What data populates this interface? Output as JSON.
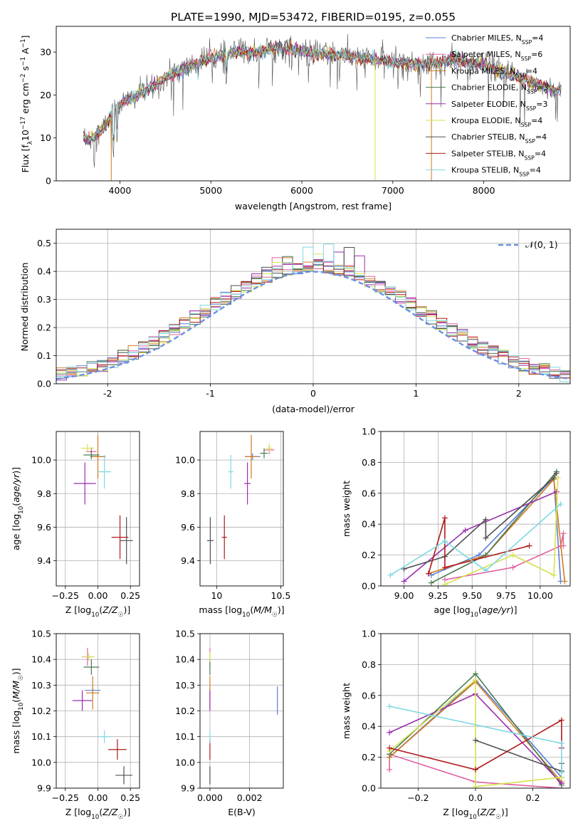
{
  "figure": {
    "title": "PLATE=1990, MJD=53472, FIBERID=0195, z=0.055"
  },
  "colors": {
    "chabrier_miles": "#5b7fd6",
    "salpeter_miles": "#e060a0",
    "kroupa_miles": "#d07a20",
    "chabrier_elodie": "#4a7a50",
    "salpeter_elodie": "#9b2db0",
    "kroupa_elodie": "#d6e24a",
    "chabrier_stelib": "#505050",
    "salpeter_stelib": "#b01818",
    "kroupa_stelib": "#7fd8e0",
    "normal_curve": "#6a8fe0",
    "grid": "#b0b0b0"
  },
  "legend": {
    "spectrum": [
      {
        "name": "Chabrier MILES",
        "nssp": "4"
      },
      {
        "name": "Salpeter MILES",
        "nssp": "6"
      },
      {
        "name": "Kroupa MILES",
        "nssp": "4"
      },
      {
        "name": "Chabrier ELODIE",
        "nssp": "3"
      },
      {
        "name": "Salpeter ELODIE",
        "nssp": "3"
      },
      {
        "name": "Kroupa ELODIE",
        "nssp": "4"
      },
      {
        "name": "Chabrier STELIB",
        "nssp": "4"
      },
      {
        "name": "Salpeter STELIB",
        "nssp": "4"
      },
      {
        "name": "Kroupa STELIB",
        "nssp": "4"
      }
    ],
    "residual_label": "𝒩(0, 1)"
  },
  "chart_data": [
    {
      "id": "spectrum",
      "type": "line",
      "xlabel": "wavelength [Angstrom, rest frame]",
      "ylabel": "Flux [f_λ10^-17 erg cm^-2 s^-1 A^-1]",
      "xlim": [
        3300,
        8950
      ],
      "ylim": [
        0,
        36
      ],
      "xticks": [
        4000,
        5000,
        6000,
        7000,
        8000
      ],
      "yticks": [
        0,
        10,
        20,
        30
      ],
      "grid": false,
      "legend_position": "top-right",
      "continuum": [
        [
          3600,
          10
        ],
        [
          3700,
          10
        ],
        [
          3850,
          13
        ],
        [
          3950,
          17
        ],
        [
          4100,
          19
        ],
        [
          4300,
          21
        ],
        [
          4500,
          24
        ],
        [
          4700,
          26
        ],
        [
          4900,
          28
        ],
        [
          5100,
          29
        ],
        [
          5300,
          30
        ],
        [
          5500,
          30
        ],
        [
          5700,
          31
        ],
        [
          5900,
          30.5
        ],
        [
          6100,
          30
        ],
        [
          6300,
          29.5
        ],
        [
          6500,
          29
        ],
        [
          6700,
          28.5
        ],
        [
          6900,
          28
        ],
        [
          7100,
          27.5
        ],
        [
          7300,
          27
        ],
        [
          7500,
          27.5
        ],
        [
          7700,
          28
        ],
        [
          8000,
          27
        ],
        [
          8400,
          24
        ],
        [
          8800,
          21
        ]
      ]
    },
    {
      "id": "residuals",
      "type": "histogram",
      "xlabel": "(data-model)/error",
      "ylabel": "Normed distribution",
      "xlim": [
        -2.5,
        2.5
      ],
      "ylim": [
        0,
        0.55
      ],
      "xticks": [
        -2,
        -1,
        0,
        1,
        2
      ],
      "yticks": [
        0.0,
        0.1,
        0.2,
        0.3,
        0.4,
        0.5
      ],
      "grid": true,
      "legend_position": "top-right",
      "bin_width": 0.1
    },
    {
      "id": "age_vs_z",
      "type": "scatter",
      "xlabel": "Z [log10(Z/Z☉)]",
      "ylabel": "age  [log10(age/yr)]",
      "xlim": [
        -0.32,
        0.32
      ],
      "ylim": [
        9.25,
        10.17
      ],
      "xticks": [
        -0.25,
        0.0,
        0.25
      ],
      "xtick_labels": [
        "−0.25",
        "0.00",
        "0.25"
      ],
      "yticks": [
        9.4,
        9.6,
        9.8,
        10.0
      ],
      "grid": true,
      "points": [
        {
          "series": "chabrier_miles",
          "x": 0.0,
          "y": 10.02,
          "dx": 0.12,
          "dy": 0.04
        },
        {
          "series": "salpeter_miles",
          "x": -0.05,
          "y": 10.05,
          "dx": 0.08,
          "dy": 0.05
        },
        {
          "series": "kroupa_miles",
          "x": 0.0,
          "y": 10.02,
          "dx": 0.1,
          "dy": 0.26
        },
        {
          "series": "chabrier_elodie",
          "x": -0.05,
          "y": 10.03,
          "dx": 0.12,
          "dy": 0.05
        },
        {
          "series": "salpeter_elodie",
          "x": -0.1,
          "y": 9.86,
          "dx": 0.17,
          "dy": 0.25
        },
        {
          "series": "kroupa_elodie",
          "x": -0.08,
          "y": 10.07,
          "dx": 0.1,
          "dy": 0.05
        },
        {
          "series": "chabrier_stelib",
          "x": 0.22,
          "y": 9.52,
          "dx": 0.1,
          "dy": 0.28
        },
        {
          "series": "salpeter_stelib",
          "x": 0.17,
          "y": 9.54,
          "dx": 0.13,
          "dy": 0.26
        },
        {
          "series": "kroupa_stelib",
          "x": 0.05,
          "y": 9.93,
          "dx": 0.1,
          "dy": 0.2
        }
      ]
    },
    {
      "id": "age_vs_mass",
      "type": "scatter",
      "xlabel": "mass [log10(M/M☉)]",
      "ylabel": "",
      "xlim": [
        9.87,
        10.52
      ],
      "ylim": [
        9.25,
        10.17
      ],
      "xticks": [
        10.0,
        10.5
      ],
      "xtick_labels": [
        "10",
        "10.5"
      ],
      "yticks": [
        9.4,
        9.6,
        9.8,
        10.0
      ],
      "grid": true,
      "points": [
        {
          "series": "chabrier_miles",
          "x": 10.28,
          "y": 10.02,
          "dx": 0.12,
          "dy": 0.04
        },
        {
          "series": "salpeter_miles",
          "x": 10.41,
          "y": 10.06,
          "dx": 0.08,
          "dy": 0.05
        },
        {
          "series": "kroupa_miles",
          "x": 10.27,
          "y": 10.02,
          "dx": 0.1,
          "dy": 0.26
        },
        {
          "series": "chabrier_elodie",
          "x": 10.37,
          "y": 10.04,
          "dx": 0.06,
          "dy": 0.06
        },
        {
          "series": "salpeter_elodie",
          "x": 10.24,
          "y": 9.86,
          "dx": 0.05,
          "dy": 0.25
        },
        {
          "series": "kroupa_elodie",
          "x": 10.41,
          "y": 10.07,
          "dx": 0.05,
          "dy": 0.05
        },
        {
          "series": "chabrier_stelib",
          "x": 9.95,
          "y": 9.52,
          "dx": 0.05,
          "dy": 0.28
        },
        {
          "series": "salpeter_stelib",
          "x": 10.06,
          "y": 9.54,
          "dx": 0.04,
          "dy": 0.26
        },
        {
          "series": "kroupa_stelib",
          "x": 10.11,
          "y": 9.93,
          "dx": 0.04,
          "dy": 0.2
        }
      ]
    },
    {
      "id": "weight_vs_age",
      "type": "line",
      "xlabel": "age  [log10(age/yr)]",
      "ylabel": "mass weight",
      "xlim": [
        8.83,
        10.22
      ],
      "ylim": [
        0,
        1.0
      ],
      "xticks": [
        9.0,
        9.25,
        9.5,
        9.75,
        10.0
      ],
      "xtick_labels": [
        "9.00",
        "9.25",
        "9.50",
        "9.75",
        "10.00"
      ],
      "yticks": [
        0.0,
        0.2,
        0.4,
        0.6,
        0.8,
        1.0
      ],
      "grid": true,
      "series": [
        {
          "key": "chabrier_miles",
          "x": [
            9.2,
            9.55,
            10.1,
            10.15
          ],
          "y": [
            0.07,
            0.2,
            0.7,
            0.03
          ]
        },
        {
          "key": "salpeter_miles",
          "x": [
            9.3,
            9.8,
            10.15,
            10.17,
            10.17
          ],
          "y": [
            0.04,
            0.12,
            0.26,
            0.34,
            0.26
          ]
        },
        {
          "key": "kroupa_miles",
          "x": [
            9.18,
            9.6,
            10.1,
            10.18
          ],
          "y": [
            0.08,
            0.2,
            0.69,
            0.03
          ]
        },
        {
          "key": "chabrier_elodie",
          "x": [
            9.2,
            9.6,
            10.12
          ],
          "y": [
            0.02,
            0.2,
            0.74
          ]
        },
        {
          "key": "salpeter_elodie",
          "x": [
            9.0,
            9.45,
            10.12
          ],
          "y": [
            0.03,
            0.36,
            0.61
          ]
        },
        {
          "key": "kroupa_elodie",
          "x": [
            9.3,
            9.8,
            10.1,
            10.13
          ],
          "y": [
            0.01,
            0.2,
            0.07,
            0.7
          ]
        },
        {
          "key": "chabrier_stelib",
          "x": [
            9.0,
            9.3,
            9.6,
            9.6,
            10.1,
            10.12
          ],
          "y": [
            0.11,
            0.19,
            0.43,
            0.31,
            0.7,
            0.73
          ]
        },
        {
          "key": "salpeter_stelib",
          "x": [
            9.18,
            9.3,
            9.3,
            9.92
          ],
          "y": [
            0.08,
            0.44,
            0.12,
            0.26
          ]
        },
        {
          "key": "kroupa_stelib",
          "x": [
            8.9,
            9.3,
            9.6,
            10.15
          ],
          "y": [
            0.07,
            0.29,
            0.1,
            0.53
          ]
        }
      ]
    },
    {
      "id": "mass_vs_z",
      "type": "scatter",
      "xlabel": "Z [log10(Z/Z☉)]",
      "ylabel": "mass [log10(M/M☉)]",
      "xlim": [
        -0.32,
        0.32
      ],
      "ylim": [
        9.9,
        10.5
      ],
      "xticks": [
        -0.25,
        0.0,
        0.25
      ],
      "xtick_labels": [
        "−0.25",
        "0.00",
        "0.25"
      ],
      "yticks": [
        9.9,
        10.0,
        10.1,
        10.2,
        10.3,
        10.4,
        10.5
      ],
      "grid": true,
      "points": [
        {
          "series": "chabrier_miles",
          "x": -0.04,
          "y": 10.28,
          "dx": 0.12,
          "dy": 0.02
        },
        {
          "series": "salpeter_miles",
          "x": -0.08,
          "y": 10.41,
          "dx": 0.08,
          "dy": 0.07
        },
        {
          "series": "kroupa_miles",
          "x": -0.04,
          "y": 10.27,
          "dx": 0.1,
          "dy": 0.13
        },
        {
          "series": "chabrier_elodie",
          "x": -0.05,
          "y": 10.37,
          "dx": 0.12,
          "dy": 0.06
        },
        {
          "series": "salpeter_elodie",
          "x": -0.12,
          "y": 10.24,
          "dx": 0.15,
          "dy": 0.08
        },
        {
          "series": "kroupa_elodie",
          "x": -0.07,
          "y": 10.41,
          "dx": 0.09,
          "dy": 0.03
        },
        {
          "series": "chabrier_stelib",
          "x": 0.2,
          "y": 9.95,
          "dx": 0.13,
          "dy": 0.07
        },
        {
          "series": "salpeter_stelib",
          "x": 0.15,
          "y": 10.05,
          "dx": 0.14,
          "dy": 0.08
        },
        {
          "series": "kroupa_stelib",
          "x": 0.05,
          "y": 10.1,
          "dx": 0.1,
          "dy": 0.05
        }
      ]
    },
    {
      "id": "mass_vs_ebv",
      "type": "scatter",
      "xlabel": "E(B-V)",
      "ylabel": "",
      "xlim": [
        -0.0005,
        0.0037
      ],
      "ylim": [
        9.9,
        10.5
      ],
      "xticks": [
        0.0,
        0.002
      ],
      "xtick_labels": [
        "0.000",
        "0.002"
      ],
      "yticks": [
        9.9,
        10.0,
        10.1,
        10.2,
        10.3,
        10.4,
        10.5
      ],
      "grid": true,
      "points": [
        {
          "series": "chabrier_miles",
          "x": 0.0034,
          "y": 10.24,
          "dx": 0,
          "dy": 0.11
        },
        {
          "series": "salpeter_miles",
          "x": 0.0,
          "y": 10.41,
          "dx": 0,
          "dy": 0.07
        },
        {
          "series": "kroupa_miles",
          "x": 0.0,
          "y": 10.27,
          "dx": 0,
          "dy": 0.13
        },
        {
          "series": "chabrier_elodie",
          "x": 0.0,
          "y": 10.37,
          "dx": 0,
          "dy": 0.06
        },
        {
          "series": "salpeter_elodie",
          "x": 0.0,
          "y": 10.24,
          "dx": 0,
          "dy": 0.08
        },
        {
          "series": "kroupa_elodie",
          "x": 0.0,
          "y": 10.41,
          "dx": 0,
          "dy": 0.04
        },
        {
          "series": "chabrier_stelib",
          "x": 0.0,
          "y": 9.95,
          "dx": 0,
          "dy": 0.07
        },
        {
          "series": "salpeter_stelib",
          "x": 0.0,
          "y": 10.05,
          "dx": 0,
          "dy": 0.08
        },
        {
          "series": "kroupa_stelib",
          "x": 0.0,
          "y": 10.1,
          "dx": 0,
          "dy": 0.05
        }
      ]
    },
    {
      "id": "weight_vs_z",
      "type": "line",
      "xlabel": "Z [log10(Z/Z☉)]",
      "ylabel": "mass weight",
      "xlim": [
        -0.33,
        0.33
      ],
      "ylim": [
        0,
        1.0
      ],
      "xticks": [
        -0.2,
        0.0,
        0.2
      ],
      "xtick_labels": [
        "−0.2",
        "0.0",
        "0.2"
      ],
      "yticks": [
        0.0,
        0.2,
        0.4,
        0.6,
        0.8,
        1.0
      ],
      "grid": true,
      "series": [
        {
          "key": "chabrier_miles",
          "x": [
            -0.3,
            0.0,
            0.3
          ],
          "y": [
            0.2,
            0.7,
            0.07
          ]
        },
        {
          "key": "salpeter_miles",
          "x": [
            -0.3,
            -0.3,
            0.0,
            0.3
          ],
          "y": [
            0.12,
            0.22,
            0.04,
            0.0
          ]
        },
        {
          "key": "kroupa_miles",
          "x": [
            -0.3,
            0.0,
            0.3
          ],
          "y": [
            0.2,
            0.69,
            0.04
          ]
        },
        {
          "key": "chabrier_elodie",
          "x": [
            -0.3,
            0.0,
            0.3
          ],
          "y": [
            0.22,
            0.74,
            0.02
          ]
        },
        {
          "key": "salpeter_elodie",
          "x": [
            -0.3,
            0.0,
            0.3
          ],
          "y": [
            0.36,
            0.61,
            0.03
          ]
        },
        {
          "key": "kroupa_elodie",
          "x": [
            -0.3,
            0.0,
            0.0,
            0.3
          ],
          "y": [
            0.24,
            0.7,
            0.01,
            0.07
          ]
        },
        {
          "key": "chabrier_stelib",
          "x": [
            0.0,
            0.3,
            0.3
          ],
          "y": [
            0.31,
            0.11,
            0.16
          ]
        },
        {
          "key": "salpeter_stelib",
          "x": [
            -0.3,
            0.0,
            0.3,
            0.3
          ],
          "y": [
            0.26,
            0.12,
            0.44,
            0.26
          ]
        },
        {
          "key": "kroupa_stelib",
          "x": [
            -0.3,
            0.3,
            0.3
          ],
          "y": [
            0.53,
            0.29,
            0.1
          ]
        }
      ]
    }
  ]
}
